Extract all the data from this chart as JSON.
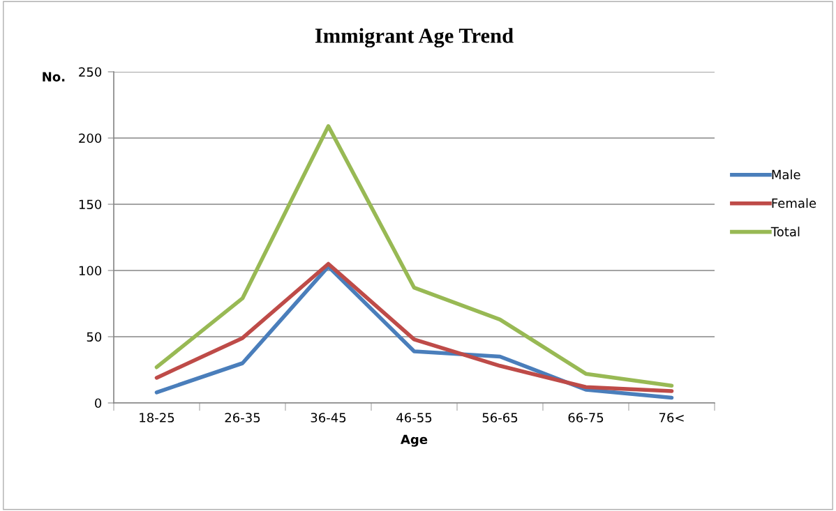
{
  "chart_data": {
    "type": "line",
    "title": "Immigrant Age Trend",
    "xlabel": "Age",
    "ylabel": "No.",
    "categories": [
      "18-25",
      "26-35",
      "36-45",
      "46-55",
      "56-65",
      "66-75",
      "76<"
    ],
    "series": [
      {
        "name": "Male",
        "color": "#4a7ebb",
        "values": [
          8,
          30,
          103,
          39,
          35,
          10,
          4
        ]
      },
      {
        "name": "Female",
        "color": "#be4b48",
        "values": [
          19,
          49,
          105,
          48,
          28,
          12,
          9
        ]
      },
      {
        "name": "Total",
        "color": "#98b954",
        "values": [
          27,
          79,
          209,
          87,
          63,
          22,
          13
        ]
      }
    ],
    "ylim": [
      0,
      250
    ],
    "yticks": [
      0,
      50,
      100,
      150,
      200,
      250
    ],
    "grid": "y",
    "legend": "right",
    "marker": "none",
    "line_style": "solid"
  }
}
